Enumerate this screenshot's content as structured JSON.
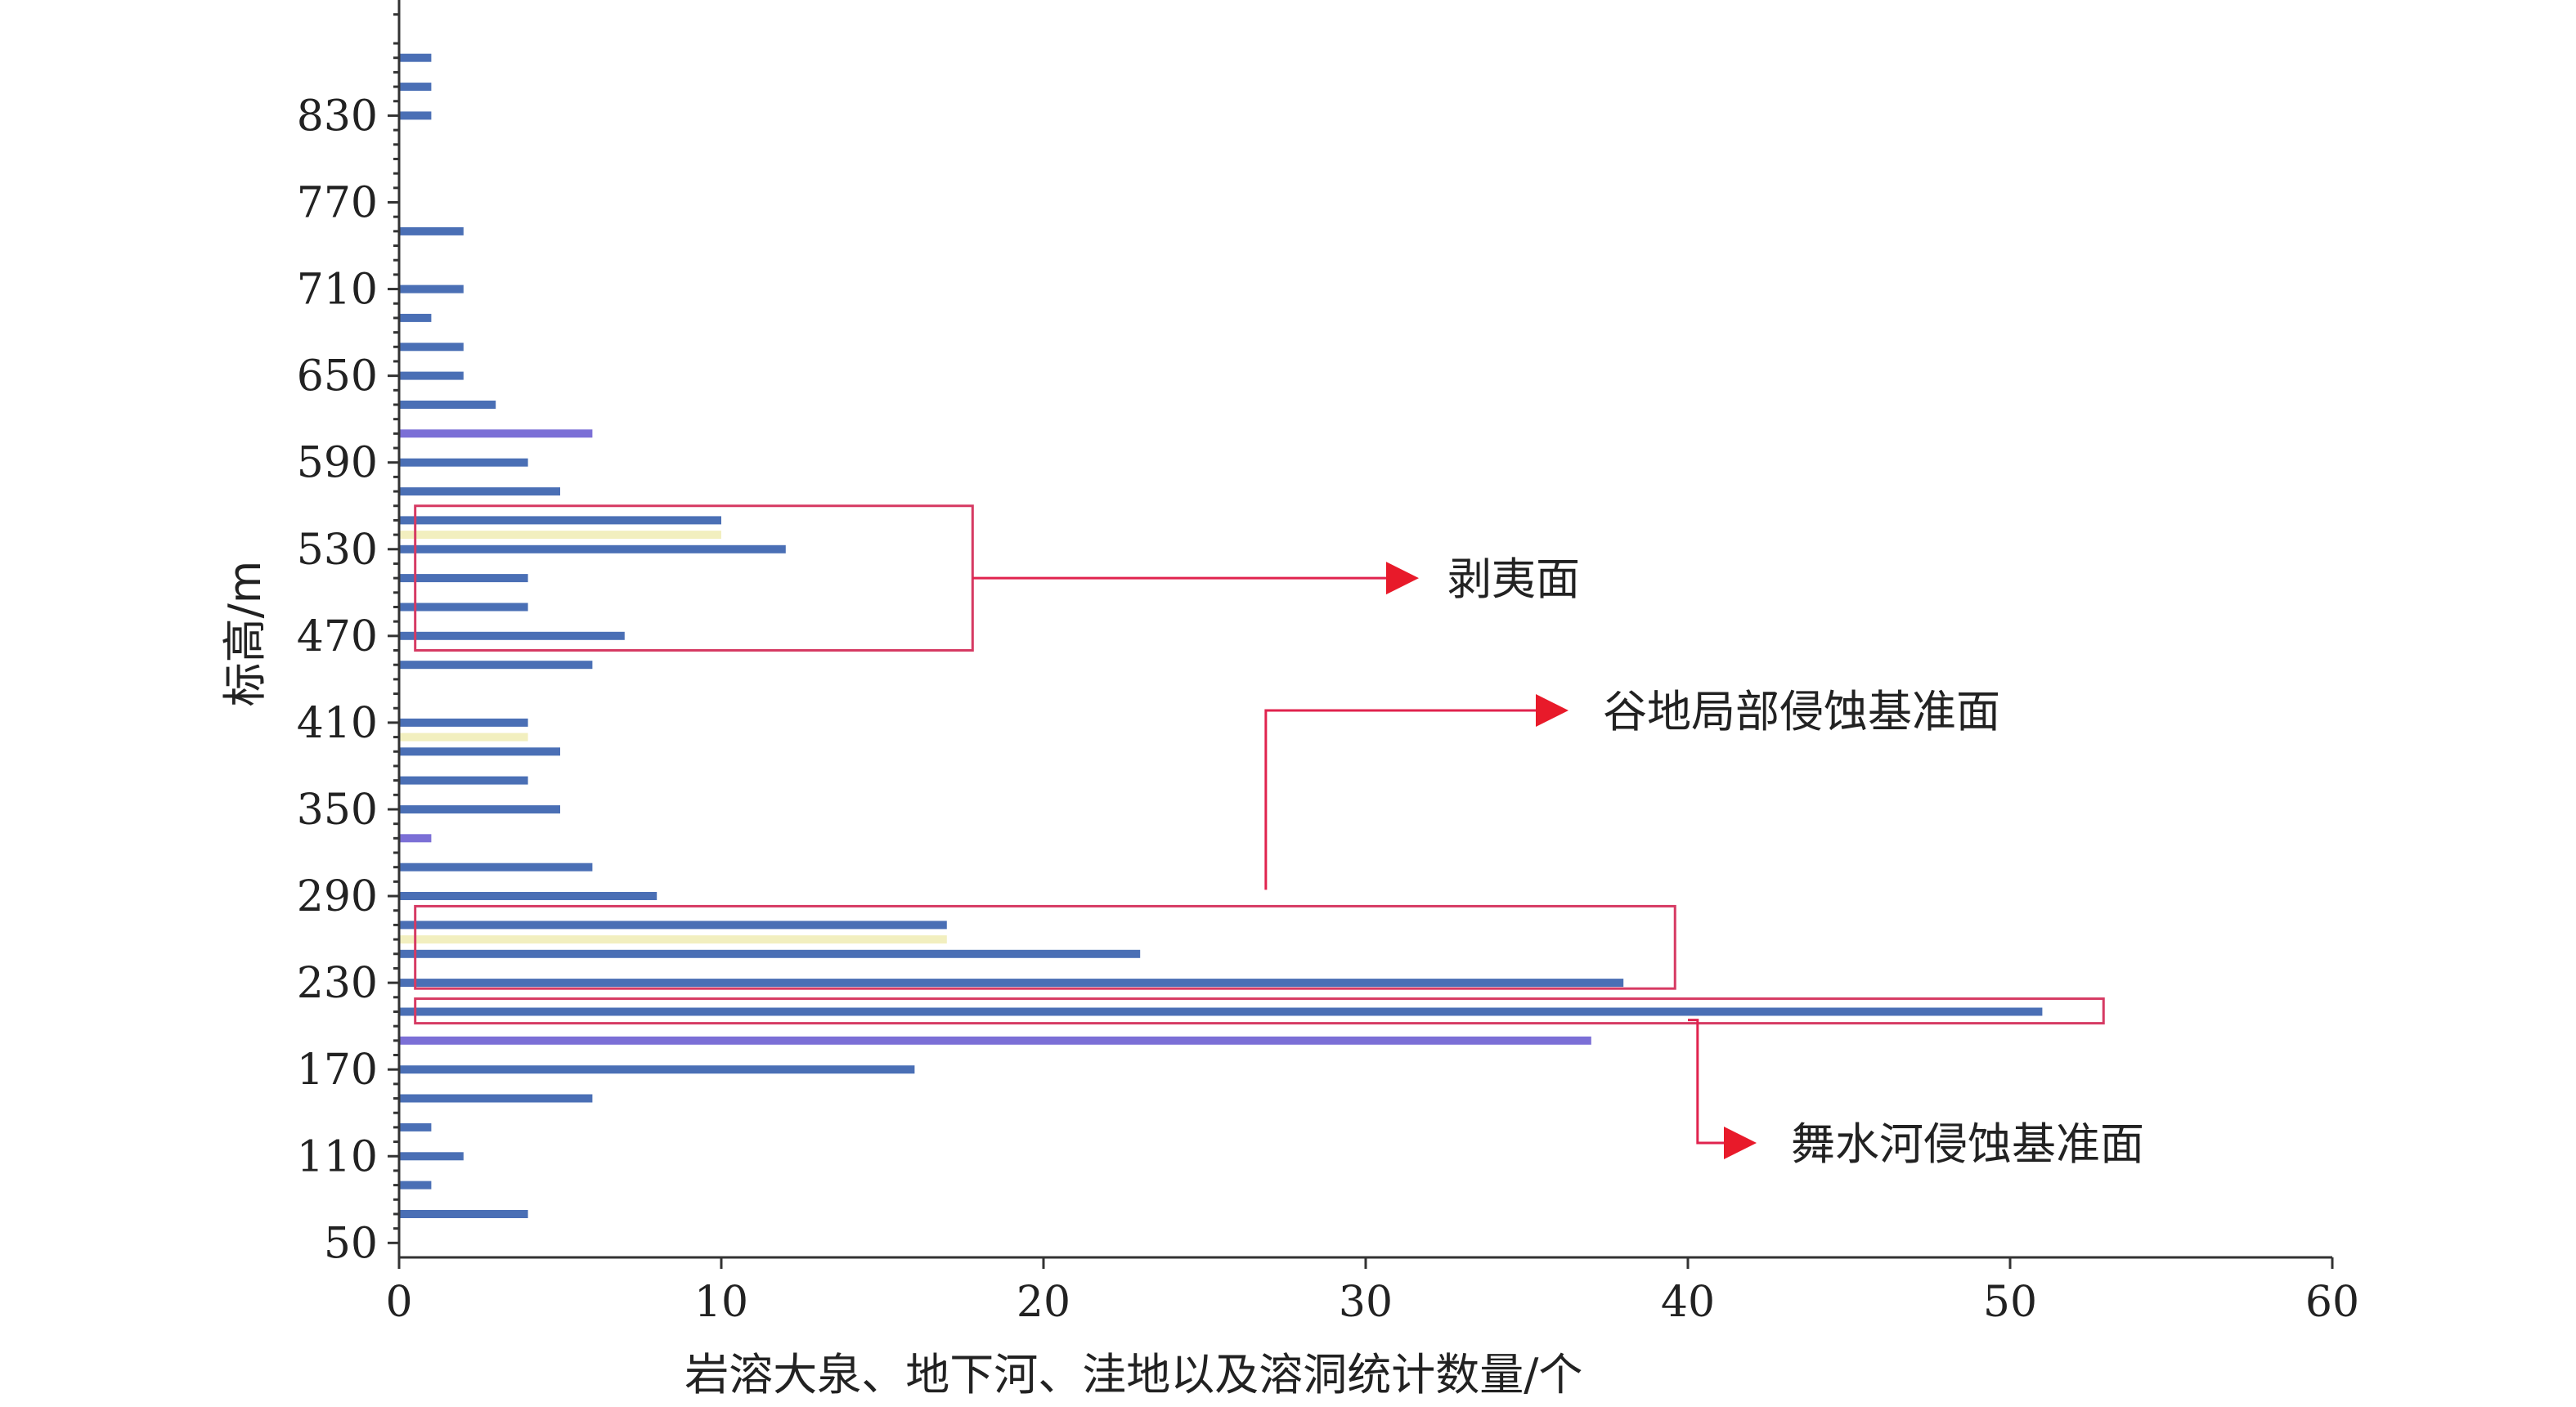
{
  "chart_data": {
    "type": "bar",
    "orientation": "horizontal",
    "xlabel": "岩溶大泉、地下河、洼地以及溶洞统计数量/个",
    "ylabel": "标高/m",
    "xlim": [
      0,
      60
    ],
    "x_ticks": [
      "0",
      "10",
      "20",
      "30",
      "40",
      "50",
      "60"
    ],
    "ylim": [
      40,
      910
    ],
    "y_ticks": [
      "50",
      "110",
      "170",
      "230",
      "290",
      "350",
      "410",
      "470",
      "530",
      "590",
      "650",
      "710",
      "770",
      "830"
    ],
    "grid": false,
    "legend": "none",
    "colors": {
      "bar": "#4a6fb5",
      "bar_alt": "#7b6fd6",
      "bar_highlight": "#f2efbf",
      "annotation": "#e0234e",
      "arrow": "#e81a2a"
    },
    "bars": [
      {
        "elevation": 70,
        "value": 4,
        "color": "#4a6fb5"
      },
      {
        "elevation": 90,
        "value": 1,
        "color": "#4a6fb5"
      },
      {
        "elevation": 110,
        "value": 2,
        "color": "#4a6fb5"
      },
      {
        "elevation": 130,
        "value": 1,
        "color": "#4a6fb5"
      },
      {
        "elevation": 150,
        "value": 6,
        "color": "#4a6fb5"
      },
      {
        "elevation": 170,
        "value": 16,
        "color": "#4a6fb5"
      },
      {
        "elevation": 190,
        "value": 37,
        "color": "#7b6fd6"
      },
      {
        "elevation": 210,
        "value": 51,
        "color": "#4a6fb5"
      },
      {
        "elevation": 230,
        "value": 38,
        "color": "#4a6fb5"
      },
      {
        "elevation": 250,
        "value": 23,
        "color": "#4a6fb5"
      },
      {
        "elevation": 260,
        "value": 17,
        "color": "#f2efbf"
      },
      {
        "elevation": 270,
        "value": 17,
        "color": "#4a6fb5"
      },
      {
        "elevation": 290,
        "value": 8,
        "color": "#4a6fb5"
      },
      {
        "elevation": 310,
        "value": 6,
        "color": "#4a6fb5"
      },
      {
        "elevation": 330,
        "value": 1,
        "color": "#7b6fd6"
      },
      {
        "elevation": 350,
        "value": 5,
        "color": "#4a6fb5"
      },
      {
        "elevation": 370,
        "value": 4,
        "color": "#4a6fb5"
      },
      {
        "elevation": 390,
        "value": 5,
        "color": "#4a6fb5"
      },
      {
        "elevation": 400,
        "value": 4,
        "color": "#f2efbf"
      },
      {
        "elevation": 410,
        "value": 4,
        "color": "#4a6fb5"
      },
      {
        "elevation": 450,
        "value": 6,
        "color": "#4a6fb5"
      },
      {
        "elevation": 470,
        "value": 7,
        "color": "#4a6fb5"
      },
      {
        "elevation": 490,
        "value": 4,
        "color": "#4a6fb5"
      },
      {
        "elevation": 510,
        "value": 4,
        "color": "#4a6fb5"
      },
      {
        "elevation": 530,
        "value": 12,
        "color": "#4a6fb5"
      },
      {
        "elevation": 540,
        "value": 10,
        "color": "#f2efbf"
      },
      {
        "elevation": 550,
        "value": 10,
        "color": "#4a6fb5"
      },
      {
        "elevation": 570,
        "value": 5,
        "color": "#4a6fb5"
      },
      {
        "elevation": 590,
        "value": 4,
        "color": "#4a6fb5"
      },
      {
        "elevation": 610,
        "value": 6,
        "color": "#7b6fd6"
      },
      {
        "elevation": 630,
        "value": 3,
        "color": "#4a6fb5"
      },
      {
        "elevation": 650,
        "value": 2,
        "color": "#4a6fb5"
      },
      {
        "elevation": 670,
        "value": 2,
        "color": "#4a6fb5"
      },
      {
        "elevation": 690,
        "value": 1,
        "color": "#4a6fb5"
      },
      {
        "elevation": 710,
        "value": 2,
        "color": "#4a6fb5"
      },
      {
        "elevation": 750,
        "value": 2,
        "color": "#4a6fb5"
      },
      {
        "elevation": 830,
        "value": 1,
        "color": "#4a6fb5"
      },
      {
        "elevation": 850,
        "value": 1,
        "color": "#4a6fb5"
      },
      {
        "elevation": 870,
        "value": 1,
        "color": "#4a6fb5"
      }
    ],
    "annotations": [
      {
        "label": "剥夷面",
        "elev_range": [
          460,
          560
        ],
        "value_range": [
          0.5,
          17.8
        ]
      },
      {
        "label": "谷地局部侵蚀基准面",
        "elev_range": [
          226,
          283
        ],
        "value_range": [
          0.5,
          39.6
        ]
      },
      {
        "label": "舞水河侵蚀基准面",
        "elev_range": [
          202,
          219
        ],
        "value_range": [
          0.5,
          52.9
        ]
      }
    ]
  }
}
